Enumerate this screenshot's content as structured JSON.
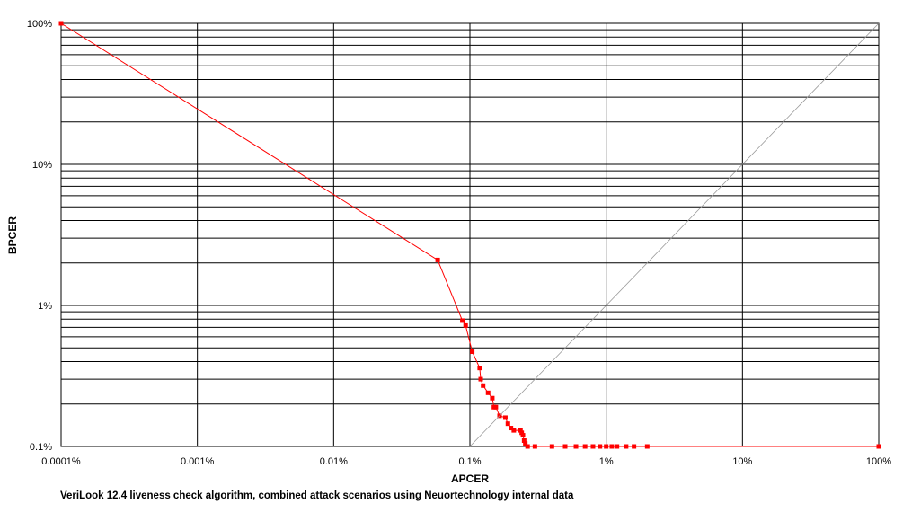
{
  "caption": "VeriLook 12.4  liveness check algorithm, combined attack scenarios using Neuortechnology internal data",
  "chart_data": {
    "type": "line",
    "xscale": "log",
    "yscale": "log",
    "xlabel": "APCER",
    "ylabel": "BPCER",
    "xlim": [
      0.0001,
      100
    ],
    "ylim": [
      0.1,
      100
    ],
    "grid": true,
    "legend": "none",
    "x_tick_values": [
      0.0001,
      0.001,
      0.01,
      0.1,
      1,
      10,
      100
    ],
    "x_tick_labels": [
      "0.0001%",
      "0.001%",
      "0.01%",
      "0.1%",
      "1%",
      "10%",
      "100%"
    ],
    "y_tick_values": [
      0.1,
      1,
      10,
      100
    ],
    "y_tick_labels": [
      "0.1%",
      "1%",
      "10%",
      "100%"
    ],
    "series": [
      {
        "color": "#ff0000",
        "marker": "square",
        "points": [
          [
            0.0001,
            100
          ],
          [
            0.058,
            2.1
          ],
          [
            0.088,
            0.78
          ],
          [
            0.093,
            0.72
          ],
          [
            0.104,
            0.47
          ],
          [
            0.118,
            0.36
          ],
          [
            0.12,
            0.3
          ],
          [
            0.125,
            0.27
          ],
          [
            0.136,
            0.24
          ],
          [
            0.146,
            0.22
          ],
          [
            0.15,
            0.19
          ],
          [
            0.155,
            0.19
          ],
          [
            0.165,
            0.165
          ],
          [
            0.182,
            0.16
          ],
          [
            0.19,
            0.145
          ],
          [
            0.2,
            0.135
          ],
          [
            0.21,
            0.13
          ],
          [
            0.235,
            0.13
          ],
          [
            0.24,
            0.125
          ],
          [
            0.245,
            0.12
          ],
          [
            0.25,
            0.11
          ],
          [
            0.255,
            0.105
          ],
          [
            0.265,
            0.1
          ],
          [
            0.3,
            0.1
          ],
          [
            0.4,
            0.1
          ],
          [
            0.5,
            0.1
          ],
          [
            0.6,
            0.1
          ],
          [
            0.7,
            0.1
          ],
          [
            0.8,
            0.1
          ],
          [
            0.9,
            0.1
          ],
          [
            1.0,
            0.1
          ],
          [
            1.1,
            0.1
          ],
          [
            1.2,
            0.1
          ],
          [
            1.4,
            0.1
          ],
          [
            1.6,
            0.1
          ],
          [
            2.0,
            0.1
          ],
          [
            100,
            0.1
          ]
        ]
      },
      {
        "color": "#9a9a9a",
        "marker": "none",
        "points": [
          [
            0.1,
            0.1
          ],
          [
            100,
            100
          ]
        ]
      }
    ]
  }
}
